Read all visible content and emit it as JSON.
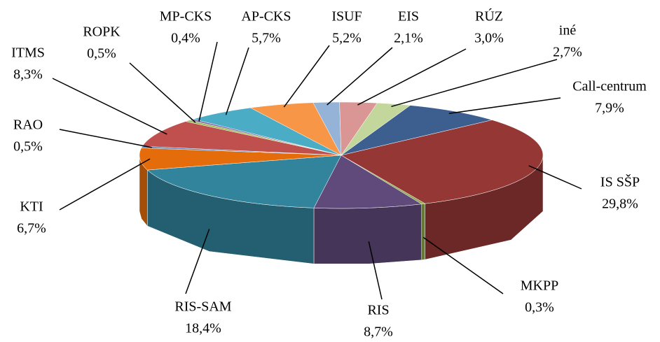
{
  "chart_data": {
    "type": "pie",
    "categories": [
      "Call-centrum",
      "IS SŠP",
      "MKPP",
      "RIS",
      "RIS-SAM",
      "KTI",
      "RAO",
      "ITMS",
      "ROPK",
      "MP-CKS",
      "AP-CKS",
      "ISUF",
      "EIS",
      "RÚZ",
      "iné"
    ],
    "values": [
      7.9,
      29.8,
      0.3,
      8.7,
      18.4,
      6.7,
      0.5,
      8.3,
      0.5,
      0.4,
      5.7,
      5.2,
      2.1,
      3.0,
      2.7
    ],
    "value_labels": [
      "7,9%",
      "29,8%",
      "0,3%",
      "8,7%",
      "18,4%",
      "6,7%",
      "0,5%",
      "8,3%",
      "0,5%",
      "0,4%",
      "5,7%",
      "5,2%",
      "2,1%",
      "3,0%",
      "2,7%"
    ],
    "colors": [
      "#3d5f8f",
      "#953735",
      "#8ea84b",
      "#604a7b",
      "#31849b",
      "#e46c0a",
      "#4f81bd",
      "#c0504d",
      "#9bbb59",
      "#8064a2",
      "#4bacc6",
      "#f79646",
      "#95b3d7",
      "#d99694",
      "#c3d69b"
    ]
  }
}
